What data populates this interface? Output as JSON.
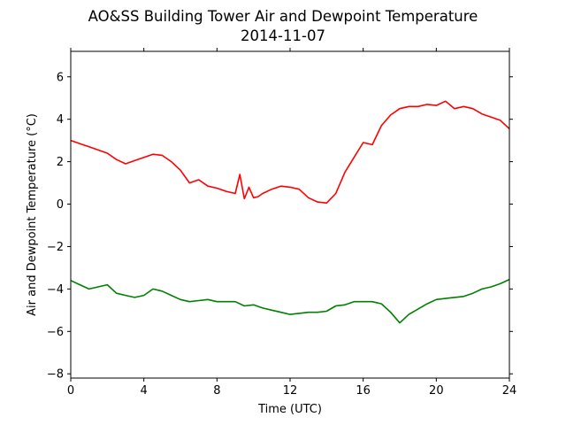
{
  "chart_data": {
    "type": "line",
    "title": "AO&SS Building Tower Air and Dewpoint Temperature",
    "subtitle": "2014-11-07",
    "xlabel": "Time (UTC)",
    "ylabel": "Air and Dewpoint Temperature (°C)",
    "xlim": [
      0,
      24
    ],
    "ylim": [
      -8.2,
      7.2
    ],
    "xticks": [
      0,
      4,
      8,
      12,
      16,
      20,
      24
    ],
    "xtick_labels": [
      "0",
      "4",
      "8",
      "12",
      "16",
      "20",
      "24"
    ],
    "yticks": [
      -8,
      -6,
      -4,
      -2,
      0,
      2,
      4,
      6
    ],
    "ytick_labels": [
      "−8",
      "−6",
      "−4",
      "−2",
      "0",
      "2",
      "4",
      "6"
    ],
    "grid": false,
    "series": [
      {
        "color": "#ff0000",
        "x": [
          0,
          0.5,
          1,
          1.5,
          2,
          2.5,
          3,
          3.5,
          4,
          4.5,
          5,
          5.5,
          6,
          6.5,
          7,
          7.5,
          8,
          8.5,
          9,
          9.25,
          9.5,
          9.75,
          10,
          10.25,
          10.5,
          11,
          11.5,
          12,
          12.5,
          13,
          13.5,
          14,
          14.5,
          15,
          15.5,
          16,
          16.5,
          17,
          17.5,
          18,
          18.5,
          19,
          19.5,
          20,
          20.5,
          21,
          21.5,
          22,
          22.5,
          23,
          23.5,
          24
        ],
        "y": [
          3.0,
          2.85,
          2.7,
          2.55,
          2.4,
          2.1,
          1.9,
          2.05,
          2.2,
          2.35,
          2.3,
          2.0,
          1.6,
          1.0,
          1.15,
          0.85,
          0.75,
          0.6,
          0.5,
          1.4,
          0.25,
          0.8,
          0.3,
          0.35,
          0.5,
          0.7,
          0.85,
          0.8,
          0.7,
          0.3,
          0.1,
          0.05,
          0.5,
          1.5,
          2.2,
          2.9,
          2.8,
          3.7,
          4.2,
          4.5,
          4.6,
          4.6,
          4.7,
          4.65,
          4.85,
          4.5,
          4.6,
          4.5,
          4.25,
          4.1,
          3.95,
          3.55
        ]
      },
      {
        "color": "#008000",
        "x": [
          0,
          0.5,
          1,
          1.5,
          2,
          2.5,
          3,
          3.5,
          4,
          4.5,
          5,
          5.5,
          6,
          6.5,
          7,
          7.5,
          8,
          8.5,
          9,
          9.5,
          10,
          10.5,
          11,
          11.5,
          12,
          12.5,
          13,
          13.5,
          14,
          14.5,
          15,
          15.5,
          16,
          16.5,
          17,
          17.5,
          18,
          18.5,
          19,
          19.5,
          20,
          20.5,
          21,
          21.5,
          22,
          22.5,
          23,
          23.5,
          24
        ],
        "y": [
          -3.6,
          -3.8,
          -4.0,
          -3.9,
          -3.8,
          -4.2,
          -4.3,
          -4.4,
          -4.3,
          -4.0,
          -4.1,
          -4.3,
          -4.5,
          -4.6,
          -4.55,
          -4.5,
          -4.6,
          -4.6,
          -4.6,
          -4.8,
          -4.75,
          -4.9,
          -5.0,
          -5.1,
          -5.2,
          -5.15,
          -5.1,
          -5.1,
          -5.05,
          -4.8,
          -4.75,
          -4.6,
          -4.6,
          -4.6,
          -4.7,
          -5.1,
          -5.6,
          -5.2,
          -4.95,
          -4.7,
          -4.5,
          -4.45,
          -4.4,
          -4.35,
          -4.2,
          -4.0,
          -3.9,
          -3.75,
          -3.55
        ]
      }
    ]
  }
}
